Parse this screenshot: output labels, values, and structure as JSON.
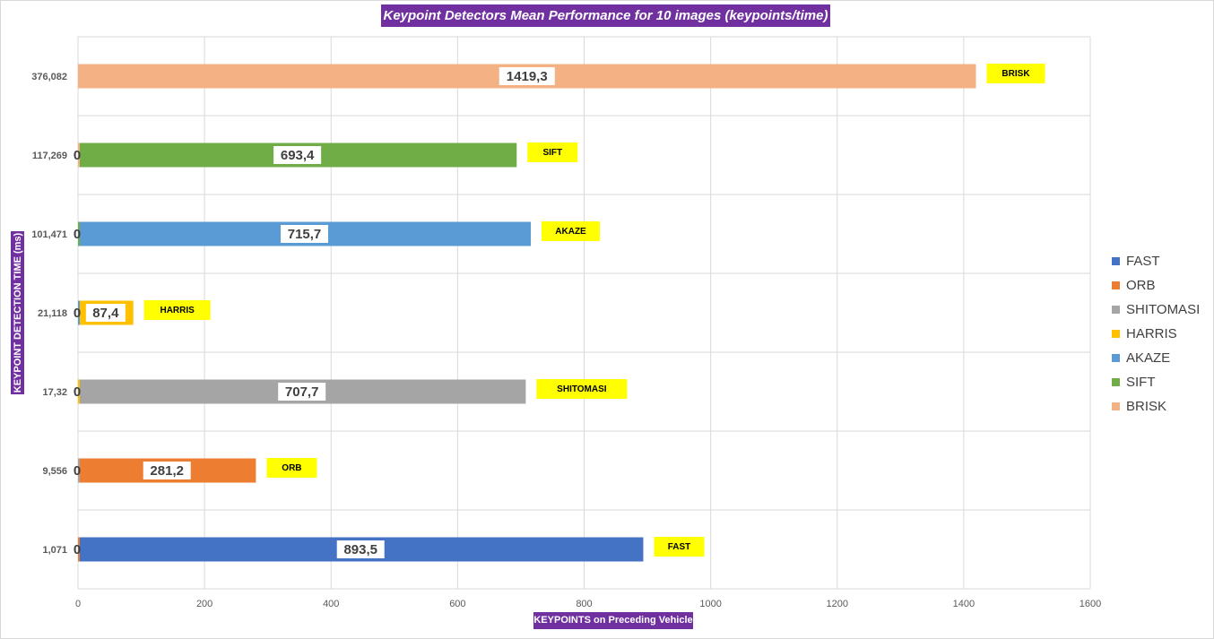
{
  "chart_data": {
    "type": "bar",
    "orientation": "horizontal",
    "title": "Keypoint Detectors Mean Performance for 10 images (keypoints/time)",
    "xlabel": "KEYPOINTS on Preceding Vehicle",
    "ylabel": "KEYPOINT DETECTION TIME (ms)",
    "xlim": [
      0,
      1600
    ],
    "x_ticks": [
      "0",
      "200",
      "400",
      "600",
      "800",
      "1000",
      "1200",
      "1400",
      "1600"
    ],
    "grid": true,
    "legend_position": "right",
    "categories": [
      "1,071",
      "9,556",
      "17,32",
      "21,118",
      "101,471",
      "117,269",
      "376,082"
    ],
    "series": [
      {
        "name": "FAST",
        "color": "#4472c4",
        "values": [
          893.5,
          0,
          0,
          0,
          0,
          0,
          0
        ],
        "value_labels": [
          "893,5",
          "",
          "",
          "",
          "",
          "",
          ""
        ]
      },
      {
        "name": "ORB",
        "color": "#ed7d31",
        "values": [
          0,
          281.2,
          0,
          0,
          0,
          0,
          0
        ],
        "value_labels": [
          "0",
          "281,2",
          "",
          "",
          "",
          "",
          ""
        ]
      },
      {
        "name": "SHITOMASI",
        "color": "#a5a5a5",
        "values": [
          0,
          0,
          707.7,
          0,
          0,
          0,
          0
        ],
        "value_labels": [
          "",
          "0",
          "707,7",
          "",
          "",
          "",
          ""
        ]
      },
      {
        "name": "HARRIS",
        "color": "#ffc000",
        "values": [
          0,
          0,
          0,
          87.4,
          0,
          0,
          0
        ],
        "value_labels": [
          "",
          "",
          "0",
          "87,4",
          "",
          "",
          ""
        ]
      },
      {
        "name": "AKAZE",
        "color": "#5b9bd5",
        "values": [
          0,
          0,
          0,
          0,
          715.7,
          0,
          0
        ],
        "value_labels": [
          "",
          "",
          "",
          "0",
          "715,7",
          "",
          ""
        ]
      },
      {
        "name": "SIFT",
        "color": "#70ad47",
        "values": [
          0,
          0,
          0,
          0,
          0,
          693.4,
          0
        ],
        "value_labels": [
          "",
          "",
          "",
          "",
          "0",
          "693,4",
          ""
        ]
      },
      {
        "name": "BRISK",
        "color": "#f4b183",
        "values": [
          0,
          0,
          0,
          0,
          0,
          0,
          1419.3
        ],
        "value_labels": [
          "",
          "",
          "",
          "",
          "",
          "0",
          "1419,3"
        ]
      }
    ],
    "annotations": [
      {
        "text": "FAST",
        "category": "1,071"
      },
      {
        "text": "ORB",
        "category": "9,556"
      },
      {
        "text": "SHITOMASI",
        "category": "17,32"
      },
      {
        "text": "HARRIS",
        "category": "21,118"
      },
      {
        "text": "AKAZE",
        "category": "101,471"
      },
      {
        "text": "SIFT",
        "category": "117,269"
      },
      {
        "text": "BRISK",
        "category": "376,082"
      }
    ],
    "annotation_color": "#ffff00"
  }
}
